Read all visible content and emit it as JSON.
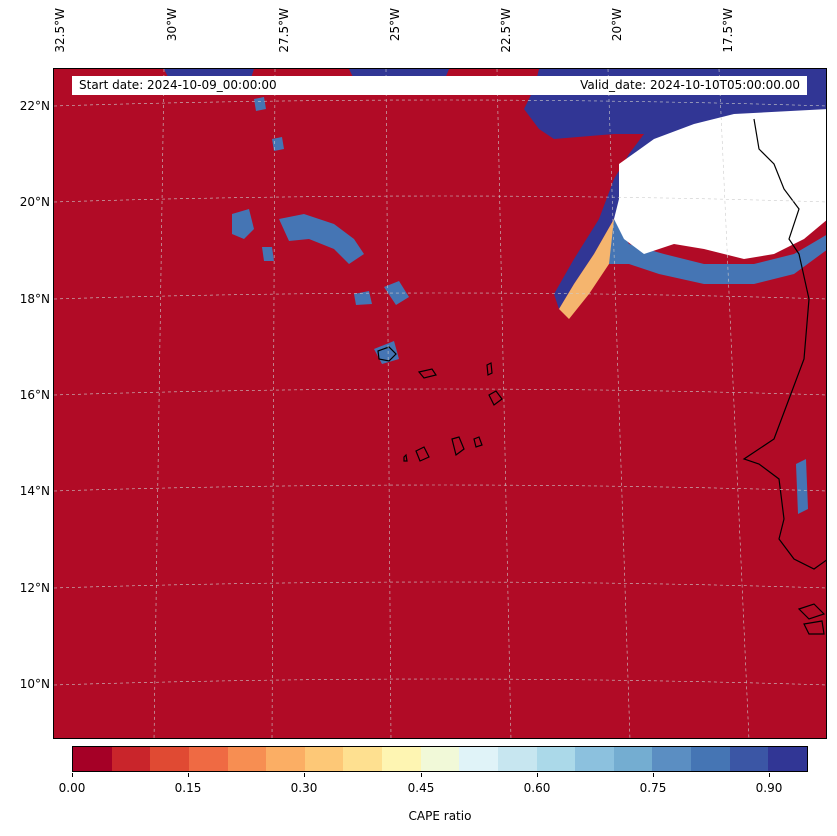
{
  "header": {
    "start_date": "Start date: 2024-10-09_00:00:00",
    "valid_date": "Valid_date: 2024-10-10T05:00:00.00"
  },
  "map": {
    "longitude_labels": [
      "32.5°W",
      "30°W",
      "27.5°W",
      "25°W",
      "22.5°W",
      "20°W",
      "17.5°W"
    ],
    "latitude_labels": [
      "22°N",
      "20°N",
      "18°N",
      "16°N",
      "14°N",
      "12°N",
      "10°N"
    ],
    "colors": {
      "low": "#b10b26",
      "high": "#313695",
      "no_data": "#ffffff",
      "coastline": "#000000",
      "gridline": "#cccccc"
    }
  },
  "colorbar": {
    "title": "CAPE ratio",
    "tick_labels": [
      "0.00",
      "0.15",
      "0.30",
      "0.45",
      "0.60",
      "0.75",
      "0.90"
    ],
    "segments": [
      "#a50026",
      "#c9252b",
      "#e04a33",
      "#ef6a43",
      "#f78e52",
      "#fbae64",
      "#fdc877",
      "#fee090",
      "#fef5b2",
      "#f1f9d8",
      "#e0f3f8",
      "#c7e6f0",
      "#abd9e9",
      "#8cc1de",
      "#74add1",
      "#5b8ec2",
      "#4575b4",
      "#3b56a5",
      "#313695"
    ]
  }
}
